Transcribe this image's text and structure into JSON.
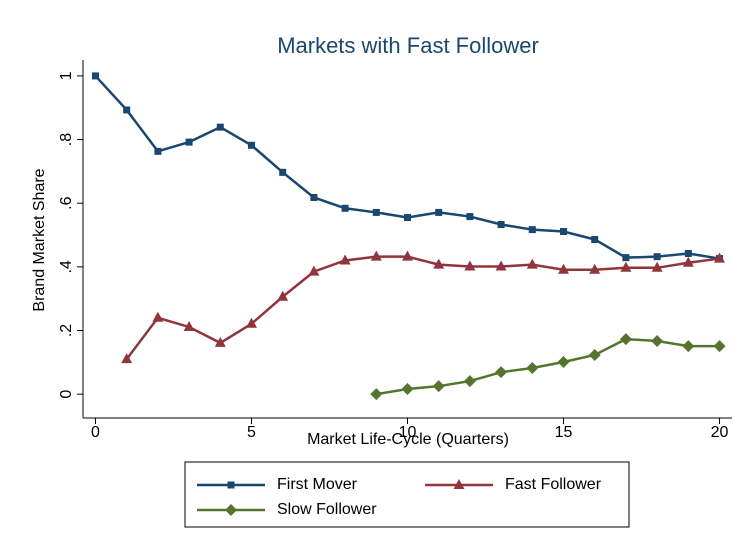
{
  "chart_data": {
    "type": "line",
    "title": "Markets with Fast Follower",
    "x_label": "Market Life-Cycle (Quarters)",
    "y_label": "Brand Market Share",
    "x": [
      0,
      1,
      2,
      3,
      4,
      5,
      6,
      7,
      8,
      9,
      10,
      11,
      12,
      13,
      14,
      15,
      16,
      17,
      18,
      19,
      20
    ],
    "series": [
      {
        "name": "First Mover",
        "color": "#1a476f",
        "marker": "square",
        "values": [
          1.0,
          0.893,
          0.763,
          0.792,
          0.839,
          0.782,
          0.697,
          0.618,
          0.584,
          0.571,
          0.555,
          0.571,
          0.558,
          0.533,
          0.517,
          0.511,
          0.486,
          0.429,
          0.432,
          0.442,
          0.426
        ]
      },
      {
        "name": "Fast Follower",
        "color": "#90353b",
        "marker": "triangle",
        "values": [
          null,
          0.11,
          0.24,
          0.211,
          0.161,
          0.221,
          0.306,
          0.385,
          0.42,
          0.432,
          0.432,
          0.407,
          0.401,
          0.401,
          0.407,
          0.391,
          0.391,
          0.397,
          0.397,
          0.413,
          0.426
        ]
      },
      {
        "name": "Slow Follower",
        "color": "#55752f",
        "marker": "diamond",
        "values": [
          null,
          null,
          null,
          null,
          null,
          null,
          null,
          null,
          null,
          0,
          0.016,
          0.025,
          0.041,
          0.069,
          0.082,
          0.101,
          0.123,
          0.173,
          0.167,
          0.151,
          0.151
        ]
      }
    ],
    "xlim": [
      -0.4,
      20.4
    ],
    "ylim": [
      -0.075,
      1.05
    ],
    "xticks": [
      0,
      5,
      10,
      15,
      20
    ],
    "yticks": [
      0,
      {
        "value": 0.2,
        "label": ".2"
      },
      {
        "value": 0.4,
        "label": ".4"
      },
      {
        "value": 0.6,
        "label": ".6"
      },
      {
        "value": 0.8,
        "label": ".8"
      },
      1
    ]
  }
}
